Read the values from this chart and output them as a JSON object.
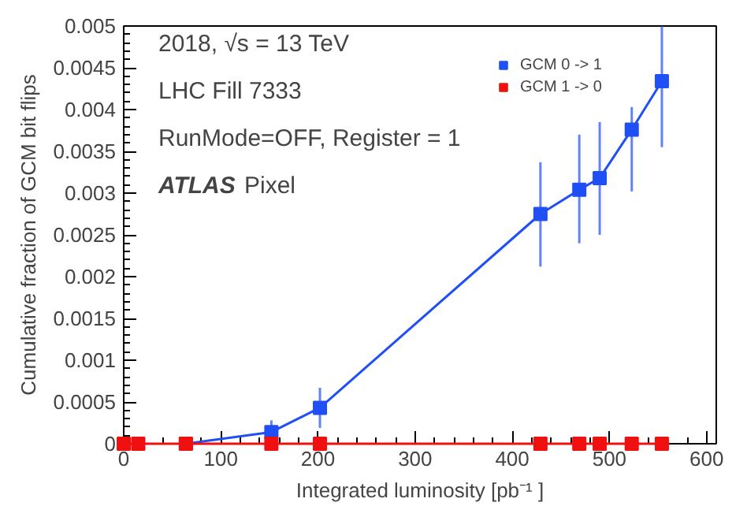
{
  "chart_data": {
    "type": "line",
    "xlabel": "Integrated luminosity [pb⁻¹ ]",
    "ylabel": "Cumulative fraction of GCM bit flips",
    "annotations": [
      "2018, √s = 13 TeV",
      "LHC Fill 7333",
      "RunMode=OFF, Register = 1",
      "ATLAS",
      "Pixel"
    ],
    "series": [
      {
        "name": "GCM 0 -> 1",
        "color": "#1f4ff5",
        "x": [
          64,
          152,
          202,
          429,
          469,
          490,
          523,
          554
        ],
        "values": [
          0,
          0.00014,
          0.00043,
          0.00275,
          0.00304,
          0.00318,
          0.00376,
          0.00434
        ],
        "errors": [
          null,
          [
            0.00014,
            0.00028
          ],
          [
            0.00019,
            0.00067
          ],
          [
            0.00212,
            0.00337
          ],
          [
            0.0024,
            0.0037
          ],
          [
            0.0025,
            0.00385
          ],
          [
            0.00302,
            0.00403
          ],
          [
            0.00355,
            0.005
          ]
        ]
      },
      {
        "name": "GCM 1 -> 0",
        "color": "#f01010",
        "x": [
          0,
          15,
          64,
          152,
          202,
          429,
          469,
          490,
          523,
          554
        ],
        "values": [
          0,
          0,
          0,
          0,
          0,
          0,
          0,
          0,
          0,
          0
        ]
      }
    ],
    "marker": "square",
    "line_style": "solid",
    "legend": "top right",
    "grid": false,
    "xlim": [
      0,
      610
    ],
    "xticks": [
      0,
      100,
      200,
      300,
      400,
      500,
      600
    ],
    "ylim": [
      0,
      0.005
    ],
    "yticks": [
      0,
      0.0005,
      0.001,
      0.0015,
      0.002,
      0.0025,
      0.003,
      0.0035,
      0.004,
      0.0045,
      0.005
    ]
  }
}
